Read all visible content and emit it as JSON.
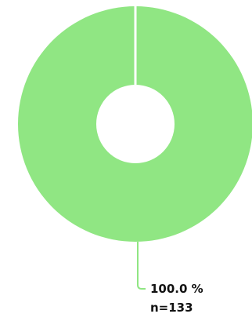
{
  "chart_data": {
    "type": "pie",
    "title": "",
    "slices": [
      {
        "percent_label": "100.0 %",
        "count_label": "n=133",
        "value": 133,
        "percent": 100.0,
        "color": "#90e683"
      }
    ],
    "donut": true
  }
}
